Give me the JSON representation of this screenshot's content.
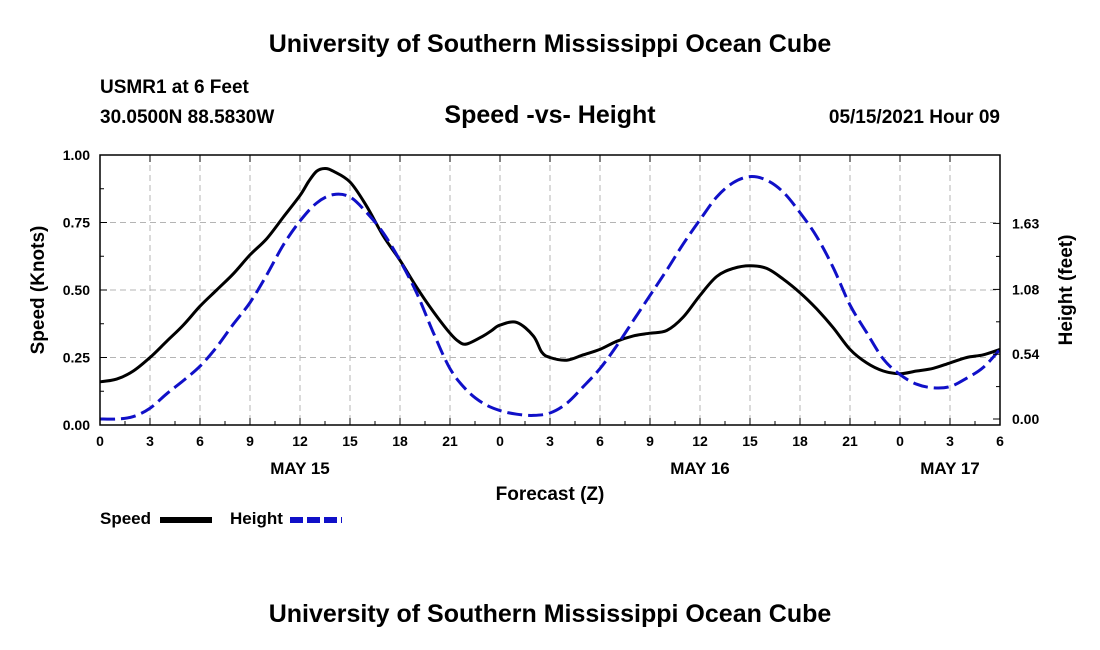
{
  "header": {
    "title": "University of Southern Mississippi Ocean Cube",
    "station": "USMR1 at 6 Feet",
    "coordinates": "30.0500N  88.5830W",
    "chart_title": "Speed -vs- Height",
    "datetime": "05/15/2021 Hour 09"
  },
  "footer": {
    "title": "University of Southern Mississippi Ocean Cube"
  },
  "legend": {
    "speed_label": "Speed",
    "height_label": "Height"
  },
  "colors": {
    "speed": "#000000",
    "height": "#1010c8",
    "grid": "#b4b4b4"
  },
  "chart_data": {
    "type": "line",
    "title": "Speed -vs- Height",
    "xlabel": "Forecast (Z)",
    "ylabel": "Speed (Knots)",
    "y2label": "Height (feet)",
    "xlim": [
      0,
      54
    ],
    "ylim": [
      0,
      1.0
    ],
    "y2lim": [
      -0.05,
      2.2
    ],
    "grid": true,
    "x_ticks": [
      0,
      3,
      6,
      9,
      12,
      15,
      18,
      21,
      24,
      27,
      30,
      33,
      36,
      39,
      42,
      45,
      48,
      51,
      54
    ],
    "x_tick_labels": [
      "0",
      "3",
      "6",
      "9",
      "12",
      "15",
      "18",
      "21",
      "0",
      "3",
      "6",
      "9",
      "12",
      "15",
      "18",
      "21",
      "0",
      "3",
      "6"
    ],
    "date_labels": [
      {
        "x": 12,
        "label": "MAY 15"
      },
      {
        "x": 36,
        "label": "MAY 16"
      },
      {
        "x": 51,
        "label": "MAY 17"
      }
    ],
    "y_ticks": [
      0.0,
      0.25,
      0.5,
      0.75,
      1.0
    ],
    "y_tick_labels": [
      "0.00",
      "0.25",
      "0.50",
      "0.75",
      "1.00"
    ],
    "y2_ticks": [
      0.0,
      0.54,
      1.08,
      1.63
    ],
    "y2_tick_labels": [
      "0.00",
      "0.54",
      "1.08",
      "1.63"
    ],
    "series": [
      {
        "name": "Speed",
        "axis": "left",
        "style": "solid",
        "x": [
          0,
          1,
          2,
          3,
          4,
          5,
          6,
          7,
          8,
          9,
          10,
          11,
          12,
          12.5,
          13,
          13.5,
          14,
          15,
          16,
          17,
          18,
          19,
          20,
          21,
          21.5,
          22,
          23,
          23.5,
          24,
          25,
          26,
          26.5,
          27,
          28,
          29,
          30,
          31,
          32,
          33,
          34,
          35,
          36,
          37,
          38,
          39,
          40,
          41,
          42,
          43,
          44,
          45,
          46,
          47,
          48,
          49,
          50,
          51,
          52,
          53,
          54
        ],
        "values": [
          0.16,
          0.17,
          0.2,
          0.25,
          0.31,
          0.37,
          0.44,
          0.5,
          0.56,
          0.63,
          0.69,
          0.77,
          0.85,
          0.9,
          0.94,
          0.95,
          0.94,
          0.9,
          0.81,
          0.7,
          0.61,
          0.51,
          0.42,
          0.34,
          0.31,
          0.3,
          0.33,
          0.35,
          0.37,
          0.38,
          0.33,
          0.27,
          0.25,
          0.24,
          0.26,
          0.28,
          0.31,
          0.33,
          0.34,
          0.35,
          0.4,
          0.48,
          0.55,
          0.58,
          0.59,
          0.58,
          0.54,
          0.49,
          0.43,
          0.36,
          0.28,
          0.23,
          0.2,
          0.19,
          0.2,
          0.21,
          0.23,
          0.25,
          0.26,
          0.28
        ]
      },
      {
        "name": "Height",
        "axis": "right",
        "style": "dashed",
        "x": [
          0,
          1,
          2,
          3,
          4,
          5,
          6,
          7,
          8,
          9,
          10,
          11,
          12,
          13,
          14,
          15,
          16,
          17,
          18,
          19,
          20,
          21,
          22,
          23,
          24,
          25,
          26,
          27,
          28,
          29,
          30,
          31,
          32,
          33,
          34,
          35,
          36,
          37,
          38,
          39,
          40,
          41,
          42,
          43,
          44,
          45,
          46,
          47,
          48,
          49,
          50,
          51,
          52,
          53,
          54
        ],
        "values": [
          0.0,
          0.0,
          0.02,
          0.09,
          0.21,
          0.32,
          0.44,
          0.6,
          0.79,
          0.97,
          1.2,
          1.45,
          1.65,
          1.8,
          1.87,
          1.85,
          1.72,
          1.55,
          1.32,
          1.05,
          0.72,
          0.42,
          0.24,
          0.13,
          0.07,
          0.04,
          0.03,
          0.05,
          0.13,
          0.27,
          0.42,
          0.61,
          0.82,
          1.03,
          1.24,
          1.46,
          1.66,
          1.85,
          1.97,
          2.02,
          1.99,
          1.89,
          1.72,
          1.52,
          1.26,
          0.95,
          0.72,
          0.5,
          0.37,
          0.29,
          0.26,
          0.27,
          0.34,
          0.43,
          0.58
        ]
      }
    ]
  }
}
